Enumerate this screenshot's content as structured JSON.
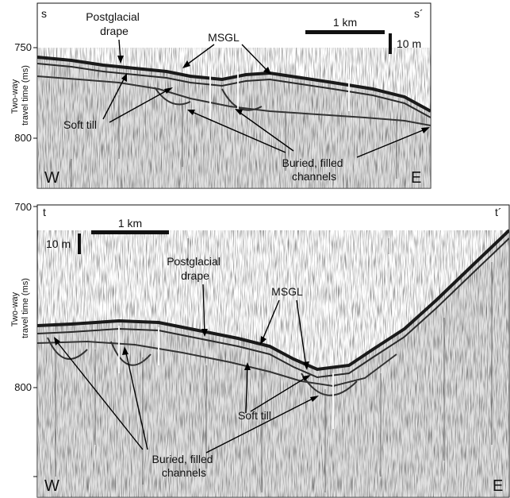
{
  "panel_top": {
    "corner_left": "s",
    "corner_right": "s´",
    "y_axis_title": [
      "Two-way",
      "travel time (ms)"
    ],
    "y_ticks": [
      "750",
      "800"
    ],
    "scale_horizontal": "1 km",
    "scale_vertical": "10 m",
    "label_drape": [
      "Postglacial",
      "drape"
    ],
    "label_msgl": "MSGL",
    "label_till": "Soft till",
    "label_channels": [
      "Buried, filled",
      "channels"
    ],
    "west": "W",
    "east": "E"
  },
  "panel_bottom": {
    "corner_left": "t",
    "corner_right": "t´",
    "y_axis_title": [
      "Two-way",
      "travel time (ms)"
    ],
    "y_ticks": [
      "700",
      "800"
    ],
    "scale_horizontal": "1 km",
    "scale_vertical": "10 m",
    "label_drape": [
      "Postglacial",
      "drape"
    ],
    "label_msgl": "MSGL",
    "label_till": "Soft till",
    "label_channels": [
      "Buried, filled",
      "channels"
    ],
    "west": "W",
    "east": "E"
  },
  "colors": {
    "reflector": "#1a1a1a",
    "noise": "#7a7a7a",
    "background": "#ffffff"
  }
}
